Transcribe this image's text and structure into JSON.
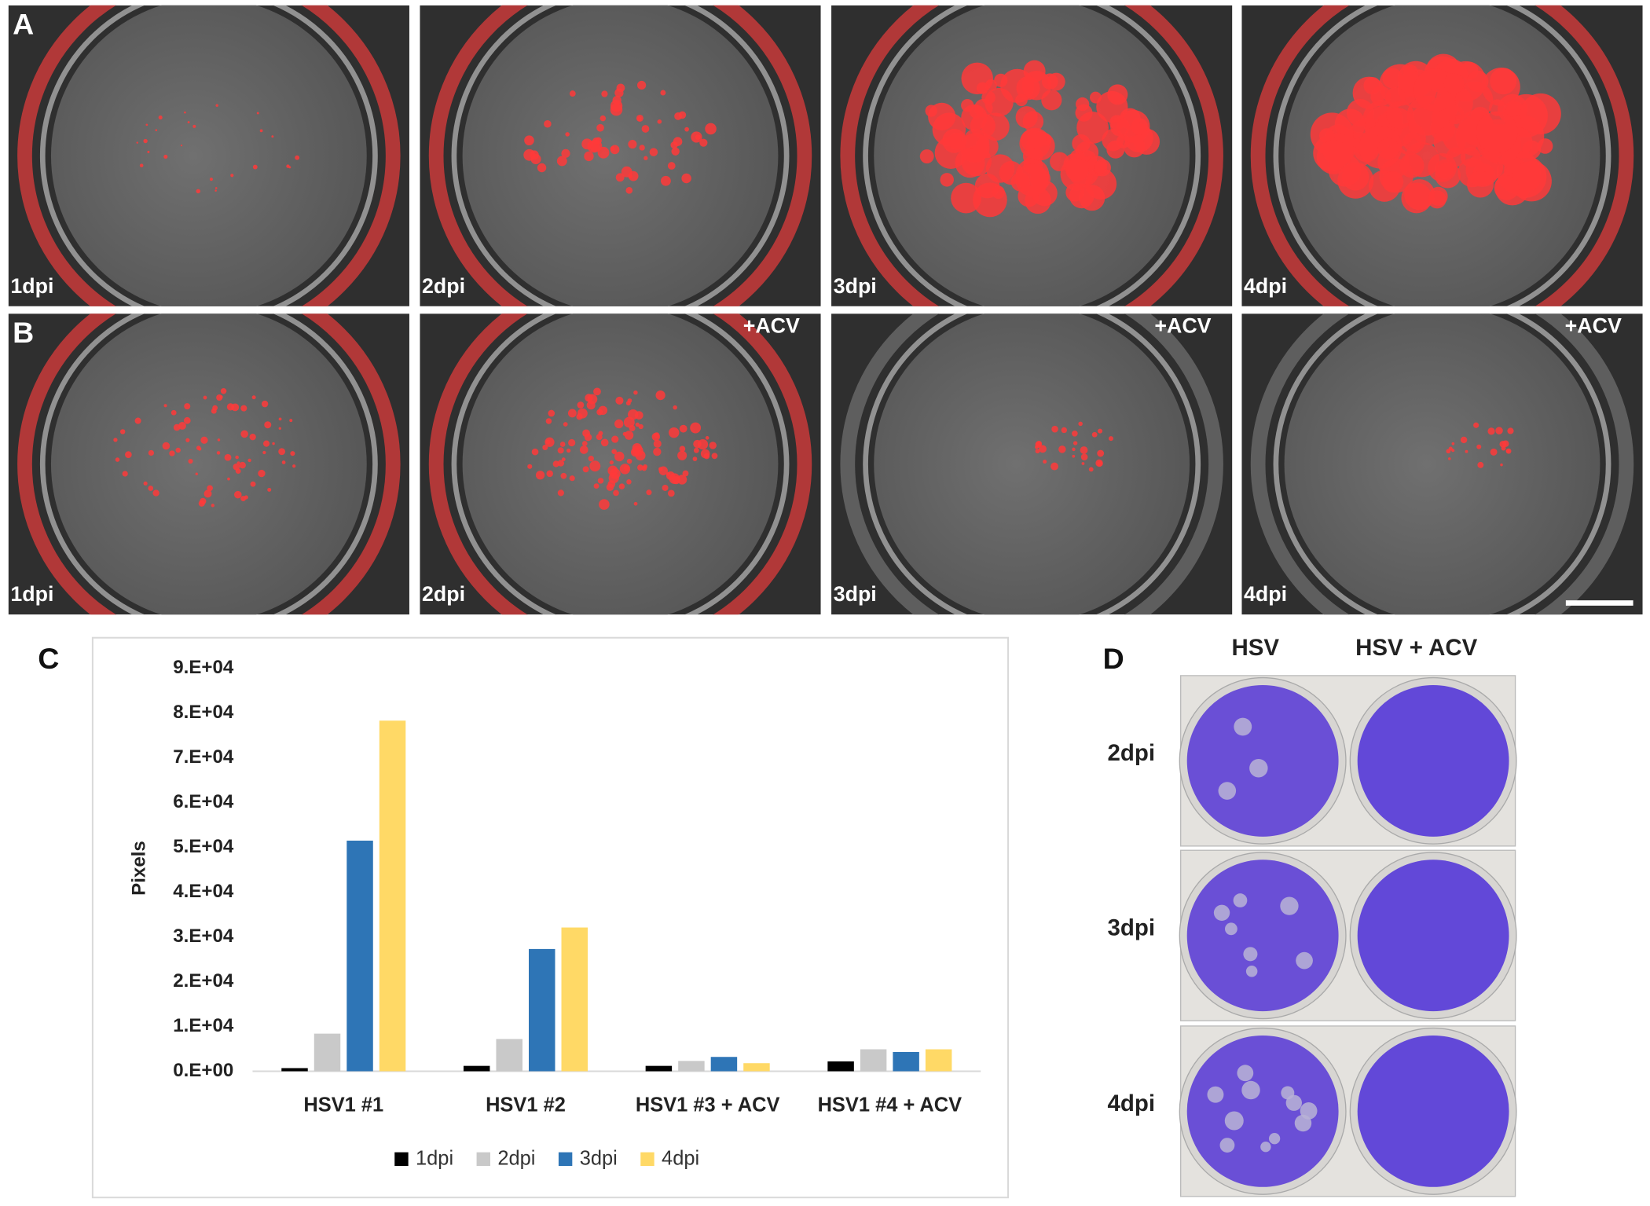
{
  "panel_a": {
    "label": "A",
    "images": [
      {
        "label": "1dpi"
      },
      {
        "label": "2dpi"
      },
      {
        "label": "3dpi"
      },
      {
        "label": "4dpi"
      }
    ]
  },
  "panel_b": {
    "label": "B",
    "images": [
      {
        "label": "1dpi"
      },
      {
        "label": "2dpi",
        "treatment": "+ACV"
      },
      {
        "label": "3dpi",
        "treatment": "+ACV"
      },
      {
        "label": "4dpi",
        "treatment": "+ACV"
      }
    ]
  },
  "panel_c": {
    "label": "C"
  },
  "chart_data": {
    "type": "bar",
    "y_label": "Pixels",
    "categories": [
      "HSV1 #1",
      "HSV1 #2",
      "HSV1 #3 + ACV",
      "HSV1 #4 + ACV"
    ],
    "series": [
      {
        "name": "1dpi",
        "color": "#000000",
        "values": [
          700,
          1200,
          1200,
          2200
        ]
      },
      {
        "name": "2dpi",
        "color": "#c9c9c9",
        "values": [
          8400,
          7200,
          2300,
          4900
        ]
      },
      {
        "name": "3dpi",
        "color": "#2e75b6",
        "values": [
          51500,
          27300,
          3200,
          4300
        ]
      },
      {
        "name": "4dpi",
        "color": "#ffd966",
        "values": [
          78300,
          32100,
          1800,
          4900
        ]
      }
    ],
    "ylim": [
      0,
      90000
    ],
    "yticks": [
      {
        "value": 0,
        "label": "0.E+00"
      },
      {
        "value": 10000,
        "label": "1.E+04"
      },
      {
        "value": 20000,
        "label": "2.E+04"
      },
      {
        "value": 30000,
        "label": "3.E+04"
      },
      {
        "value": 40000,
        "label": "4.E+04"
      },
      {
        "value": 50000,
        "label": "5.E+04"
      },
      {
        "value": 60000,
        "label": "6.E+04"
      },
      {
        "value": 70000,
        "label": "7.E+04"
      },
      {
        "value": 80000,
        "label": "8.E+04"
      },
      {
        "value": 90000,
        "label": "9.E+04"
      }
    ],
    "grid": false,
    "legend": "bottom"
  },
  "panel_d": {
    "label": "D",
    "columns": [
      "HSV",
      "HSV + ACV"
    ],
    "rows": [
      "2dpi",
      "3dpi",
      "4dpi"
    ]
  }
}
